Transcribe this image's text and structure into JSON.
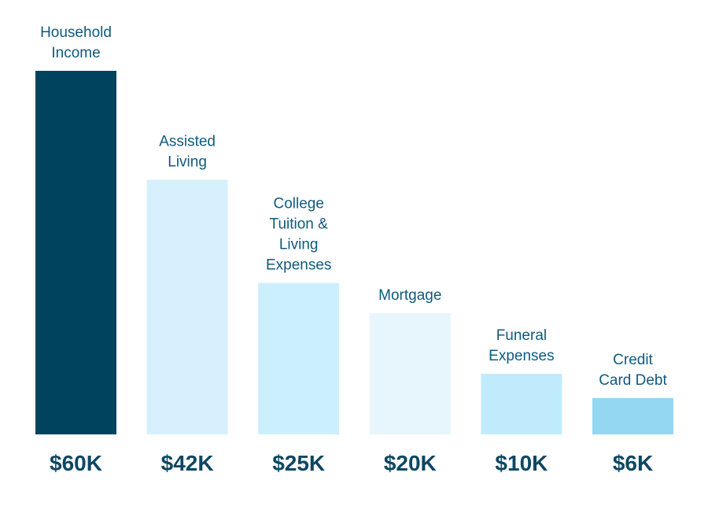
{
  "chart_data": {
    "type": "bar",
    "categories": [
      [
        "Household",
        "Income"
      ],
      [
        "Assisted",
        "Living"
      ],
      [
        "College",
        "Tuition &",
        "Living",
        "Expenses"
      ],
      [
        "Mortgage"
      ],
      [
        "Funeral",
        "Expenses"
      ],
      [
        "Credit",
        "Card Debt"
      ]
    ],
    "values": [
      60,
      42,
      25,
      20,
      10,
      6
    ],
    "value_labels": [
      "$60K",
      "$42K",
      "$25K",
      "$20K",
      "$10K",
      "$6K"
    ],
    "units": "thousands of dollars",
    "colors": [
      "#00435f",
      "#d6f0fd",
      "#cceffd",
      "#e7f6fd",
      "#c0ebfc",
      "#93d7f3"
    ],
    "label_color": "#0f5a7e",
    "value_label_color": "#0d4764",
    "ylim": [
      0,
      60
    ],
    "grid": false,
    "legend": "none"
  }
}
